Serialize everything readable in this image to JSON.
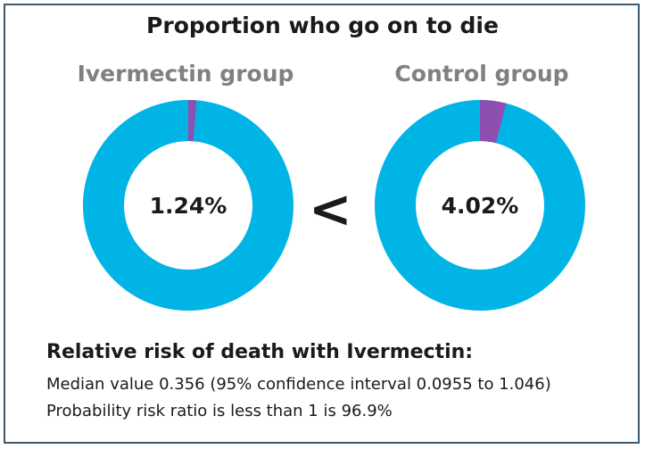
{
  "chart_data": {
    "type": "pie",
    "title": "Proportion who go on to die",
    "charts": [
      {
        "label": "Ivermectin group",
        "value_label": "1.24%",
        "value": 1.24
      },
      {
        "label": "Control group",
        "value_label": "4.02%",
        "value": 4.02
      }
    ],
    "comparison_symbol": "<",
    "colors": {
      "died": "#8e4fb0",
      "survived": "#00b4e6"
    }
  },
  "summary": {
    "heading": "Relative risk of death with Ivermectin:",
    "line1": "Median value 0.356 (95% confidence interval 0.0955 to 1.046)",
    "line2": "Probability risk ratio is less than 1 is 96.9%"
  }
}
